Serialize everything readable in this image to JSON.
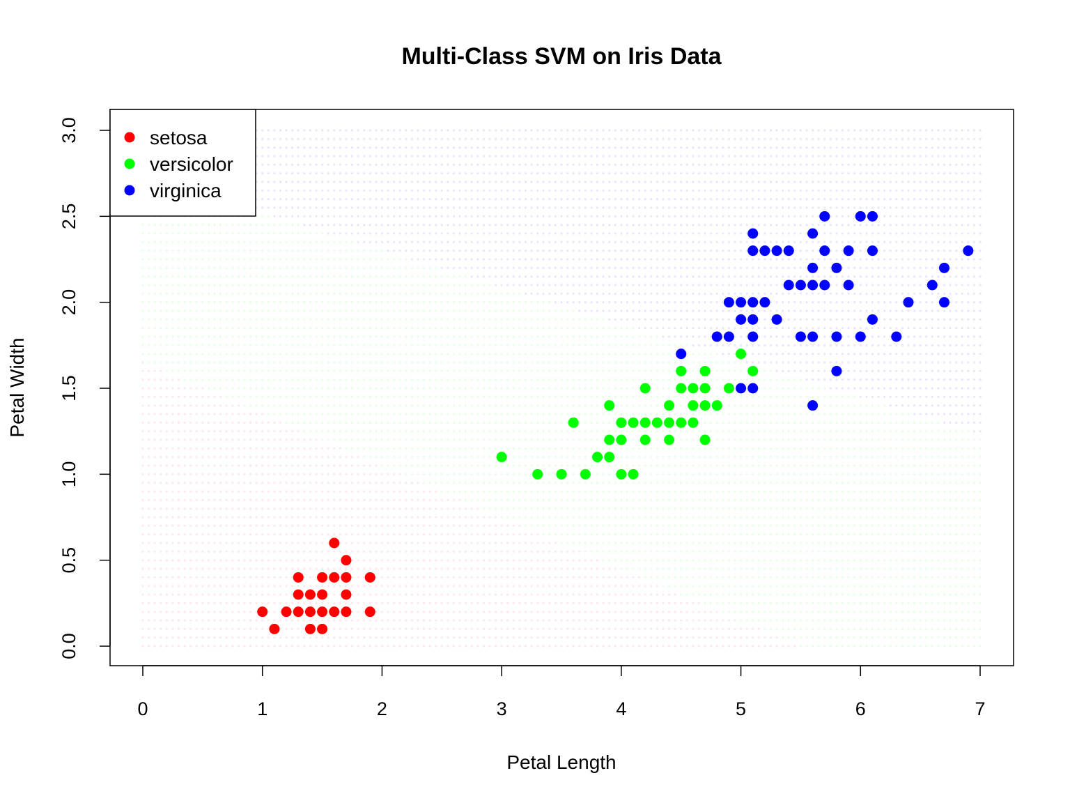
{
  "chart_data": {
    "type": "scatter",
    "title": "Multi-Class SVM on Iris Data",
    "xlabel": "Petal Length",
    "ylabel": "Petal Width",
    "xlim": [
      0,
      7
    ],
    "ylim": [
      0,
      3
    ],
    "x_ticks": [
      "0",
      "1",
      "2",
      "3",
      "4",
      "5",
      "6",
      "7"
    ],
    "y_ticks": [
      "0.0",
      "0.5",
      "1.0",
      "1.5",
      "2.0",
      "2.5",
      "3.0"
    ],
    "grid": false,
    "legend_position": "top-left",
    "decision_regions": {
      "colors": {
        "setosa": "#ffe8e8",
        "versicolor": "#e6ffe6",
        "virginica": "#e6e6ff"
      }
    },
    "series": [
      {
        "name": "setosa",
        "color": "#ff0000",
        "points": [
          [
            1.0,
            0.2
          ],
          [
            1.1,
            0.1
          ],
          [
            1.2,
            0.2
          ],
          [
            1.3,
            0.2
          ],
          [
            1.3,
            0.3
          ],
          [
            1.3,
            0.4
          ],
          [
            1.4,
            0.1
          ],
          [
            1.4,
            0.2
          ],
          [
            1.4,
            0.3
          ],
          [
            1.5,
            0.1
          ],
          [
            1.5,
            0.2
          ],
          [
            1.5,
            0.3
          ],
          [
            1.5,
            0.4
          ],
          [
            1.6,
            0.2
          ],
          [
            1.6,
            0.4
          ],
          [
            1.6,
            0.6
          ],
          [
            1.7,
            0.2
          ],
          [
            1.7,
            0.3
          ],
          [
            1.7,
            0.4
          ],
          [
            1.7,
            0.5
          ],
          [
            1.9,
            0.2
          ],
          [
            1.9,
            0.4
          ]
        ]
      },
      {
        "name": "versicolor",
        "color": "#00ff00",
        "points": [
          [
            3.0,
            1.1
          ],
          [
            3.3,
            1.0
          ],
          [
            3.5,
            1.0
          ],
          [
            3.6,
            1.3
          ],
          [
            3.7,
            1.0
          ],
          [
            3.8,
            1.1
          ],
          [
            3.9,
            1.1
          ],
          [
            3.9,
            1.2
          ],
          [
            3.9,
            1.4
          ],
          [
            4.0,
            1.0
          ],
          [
            4.0,
            1.2
          ],
          [
            4.0,
            1.3
          ],
          [
            4.1,
            1.0
          ],
          [
            4.1,
            1.3
          ],
          [
            4.2,
            1.2
          ],
          [
            4.2,
            1.3
          ],
          [
            4.2,
            1.5
          ],
          [
            4.3,
            1.3
          ],
          [
            4.4,
            1.2
          ],
          [
            4.4,
            1.3
          ],
          [
            4.4,
            1.4
          ],
          [
            4.5,
            1.3
          ],
          [
            4.5,
            1.5
          ],
          [
            4.5,
            1.6
          ],
          [
            4.6,
            1.3
          ],
          [
            4.6,
            1.4
          ],
          [
            4.6,
            1.5
          ],
          [
            4.7,
            1.2
          ],
          [
            4.7,
            1.4
          ],
          [
            4.7,
            1.5
          ],
          [
            4.7,
            1.6
          ],
          [
            4.8,
            1.4
          ],
          [
            4.9,
            1.5
          ],
          [
            5.0,
            1.7
          ],
          [
            5.1,
            1.6
          ]
        ]
      },
      {
        "name": "virginica",
        "color": "#0000ff",
        "points": [
          [
            4.5,
            1.7
          ],
          [
            4.8,
            1.8
          ],
          [
            4.9,
            1.8
          ],
          [
            4.9,
            2.0
          ],
          [
            5.0,
            1.5
          ],
          [
            5.0,
            1.9
          ],
          [
            5.0,
            2.0
          ],
          [
            5.1,
            1.5
          ],
          [
            5.1,
            1.8
          ],
          [
            5.1,
            1.9
          ],
          [
            5.1,
            2.0
          ],
          [
            5.1,
            2.3
          ],
          [
            5.1,
            2.4
          ],
          [
            5.2,
            2.0
          ],
          [
            5.2,
            2.3
          ],
          [
            5.3,
            1.9
          ],
          [
            5.3,
            2.3
          ],
          [
            5.4,
            2.1
          ],
          [
            5.4,
            2.3
          ],
          [
            5.5,
            1.8
          ],
          [
            5.5,
            2.1
          ],
          [
            5.6,
            1.4
          ],
          [
            5.6,
            1.8
          ],
          [
            5.6,
            2.1
          ],
          [
            5.6,
            2.2
          ],
          [
            5.6,
            2.4
          ],
          [
            5.7,
            2.1
          ],
          [
            5.7,
            2.3
          ],
          [
            5.7,
            2.5
          ],
          [
            5.8,
            1.6
          ],
          [
            5.8,
            1.8
          ],
          [
            5.8,
            2.2
          ],
          [
            5.9,
            2.1
          ],
          [
            5.9,
            2.3
          ],
          [
            6.0,
            1.8
          ],
          [
            6.0,
            2.5
          ],
          [
            6.1,
            1.9
          ],
          [
            6.1,
            2.3
          ],
          [
            6.1,
            2.5
          ],
          [
            6.3,
            1.8
          ],
          [
            6.4,
            2.0
          ],
          [
            6.6,
            2.1
          ],
          [
            6.7,
            2.0
          ],
          [
            6.7,
            2.2
          ],
          [
            6.9,
            2.3
          ]
        ]
      }
    ]
  }
}
